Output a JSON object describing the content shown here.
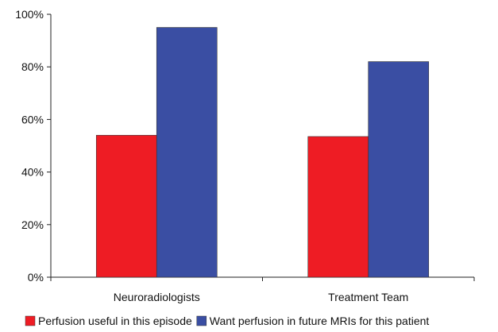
{
  "chart_data": {
    "type": "bar",
    "title": "",
    "xlabel": "",
    "ylabel": "",
    "categories": [
      "Neuroradiologists",
      "Treatment Team"
    ],
    "series": [
      {
        "name": "Perfusion useful in this episode",
        "values": [
          54,
          53.5
        ],
        "color": "#ee1c24"
      },
      {
        "name": "Want perfusion in future MRIs for this patient",
        "values": [
          95,
          82
        ],
        "color": "#3a4ea3"
      }
    ],
    "ylim": [
      0,
      100
    ],
    "y_ticks": [
      0,
      20,
      40,
      60,
      80,
      100
    ],
    "y_tick_labels": [
      "0%",
      "20%",
      "40%",
      "60%",
      "80%",
      "100%"
    ],
    "grid": false,
    "legend_position": "bottom"
  }
}
